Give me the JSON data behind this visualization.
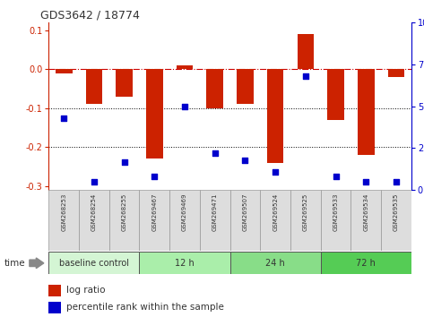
{
  "title": "GDS3642 / 18774",
  "samples": [
    "GSM268253",
    "GSM268254",
    "GSM268255",
    "GSM269467",
    "GSM269469",
    "GSM269471",
    "GSM269507",
    "GSM269524",
    "GSM269525",
    "GSM269533",
    "GSM269534",
    "GSM269535"
  ],
  "log_ratio": [
    -0.01,
    -0.09,
    -0.07,
    -0.23,
    0.01,
    -0.1,
    -0.09,
    -0.24,
    0.09,
    -0.13,
    -0.22,
    -0.02
  ],
  "percentile_rank": [
    43,
    5,
    17,
    8,
    50,
    22,
    18,
    11,
    68,
    8,
    5,
    5
  ],
  "ylim_left": [
    -0.31,
    0.12
  ],
  "ylim_right": [
    0,
    100
  ],
  "yticks_left": [
    -0.3,
    -0.2,
    -0.1,
    0.0,
    0.1
  ],
  "yticks_right": [
    0,
    25,
    50,
    75,
    100
  ],
  "groups": [
    {
      "label": "baseline control",
      "start": 0,
      "end": 3,
      "color": "#d4f5d4"
    },
    {
      "label": "12 h",
      "start": 3,
      "end": 6,
      "color": "#aaeeaa"
    },
    {
      "label": "24 h",
      "start": 6,
      "end": 9,
      "color": "#88dd88"
    },
    {
      "label": "72 h",
      "start": 9,
      "end": 12,
      "color": "#55cc55"
    }
  ],
  "bar_color": "#cc2200",
  "dot_color": "#0000cc",
  "bar_width": 0.55,
  "zero_line_color": "#cc0000",
  "dotted_line_color": "#000000",
  "sample_box_color": "#dddddd",
  "sample_box_edge": "#999999",
  "xlabel": "time",
  "legend_items": [
    "log ratio",
    "percentile rank within the sample"
  ],
  "background_color": "#ffffff"
}
